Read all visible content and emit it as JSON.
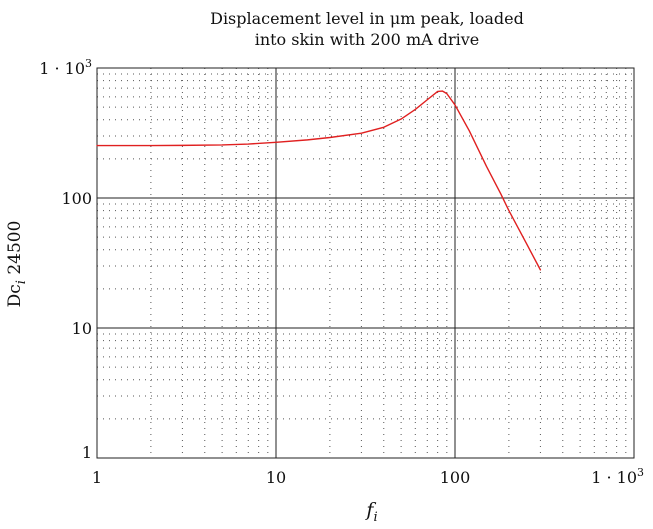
{
  "chart_data": {
    "type": "line",
    "title": "Displacement level in μm peak, loaded into skin with 200 mA drive",
    "title_lines": [
      "Displacement level in μm peak, loaded",
      "into skin with 200 mA drive"
    ],
    "xlabel": "f_i",
    "ylabel": "Dc_i 24500",
    "xscale": "log",
    "yscale": "log",
    "xlim": [
      1,
      1000
    ],
    "ylim": [
      1,
      1000
    ],
    "x_ticks": [
      1,
      10,
      100,
      1000
    ],
    "x_tick_labels": [
      "1",
      "10",
      "100",
      "1 · 10^3"
    ],
    "y_ticks": [
      1,
      10,
      100,
      1000
    ],
    "y_tick_labels": [
      "1",
      "10",
      "100",
      "1 · 10^3"
    ],
    "grid": true,
    "series": [
      {
        "color": "#e02020",
        "x": [
          1,
          2,
          3,
          5,
          7,
          10,
          15,
          20,
          30,
          40,
          50,
          60,
          70,
          80,
          85,
          90,
          100,
          120,
          150,
          180,
          200,
          250,
          300
        ],
        "y": [
          253,
          253,
          254,
          256,
          260,
          268,
          280,
          292,
          315,
          350,
          405,
          480,
          570,
          660,
          665,
          635,
          520,
          330,
          175,
          108,
          80,
          45,
          28
        ]
      }
    ]
  }
}
